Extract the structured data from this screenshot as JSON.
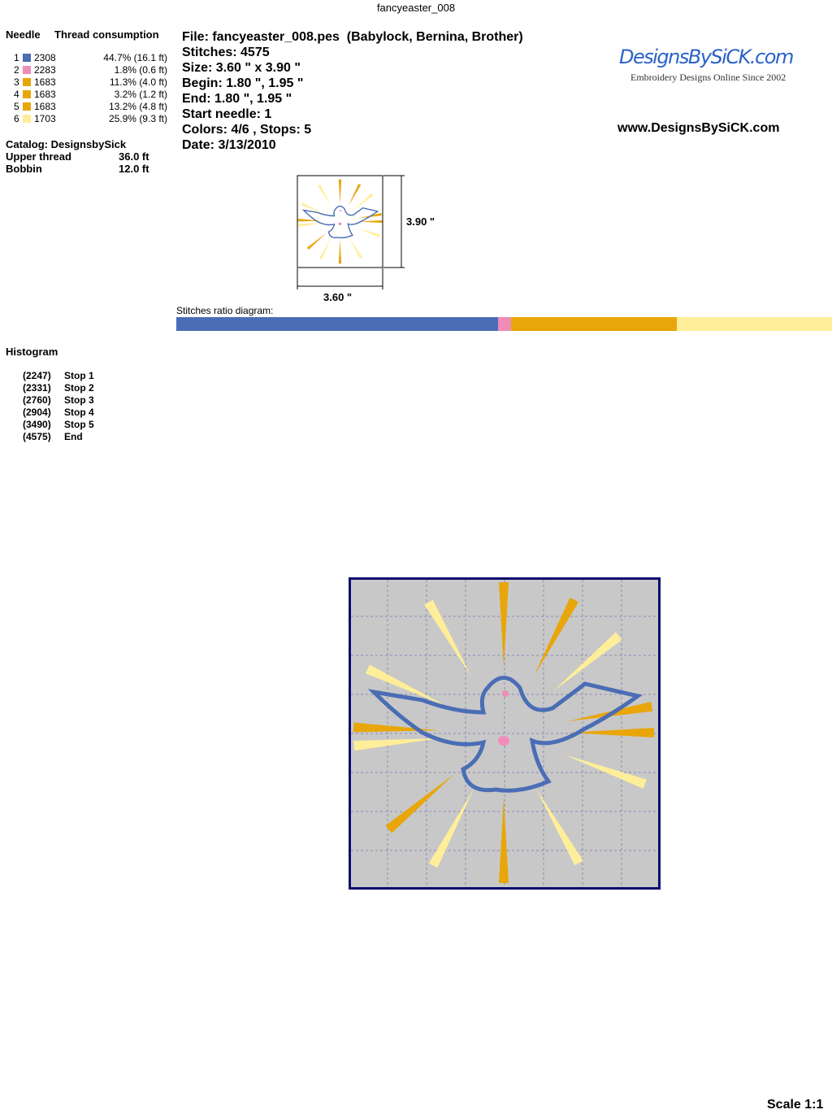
{
  "title": "fancyeaster_008",
  "thread_table": {
    "header_needle": "Needle",
    "header_consumption": "Thread consumption",
    "rows": [
      {
        "needle": "1",
        "color": "#4a6db5",
        "code": "2308",
        "consumption": "44.7% (16.1 ft)"
      },
      {
        "needle": "2",
        "color": "#f08cb8",
        "code": "2283",
        "consumption": "1.8% (0.6 ft)"
      },
      {
        "needle": "3",
        "color": "#e8a60a",
        "code": "1683",
        "consumption": "11.3% (4.0 ft)"
      },
      {
        "needle": "4",
        "color": "#e8a60a",
        "code": "1683",
        "consumption": "3.2% (1.2 ft)"
      },
      {
        "needle": "5",
        "color": "#e8a60a",
        "code": "1683",
        "consumption": "13.2% (4.8 ft)"
      },
      {
        "needle": "6",
        "color": "#ffee99",
        "code": "1703",
        "consumption": "25.9% (9.3 ft)"
      }
    ],
    "catalog": "Catalog: DesignsbySick",
    "upper_label": "Upper thread",
    "upper_value": "36.0 ft",
    "bobbin_label": "Bobbin",
    "bobbin_value": "12.0 ft"
  },
  "info": {
    "file": "File: fancyeaster_008.pes  (Babylock, Bernina, Brother)",
    "stitches": "Stitches: 4575",
    "size": "Size: 3.60 \" x 3.90 \"",
    "begin": "Begin: 1.80 \", 1.95 \"",
    "end": "End: 1.80 \", 1.95 \"",
    "start_needle": "Start needle: 1",
    "colors": "Colors: 4/6 , Stops: 5",
    "date": "Date: 3/13/2010"
  },
  "logo": {
    "brand": "DesignsBySiCK.com",
    "tagline": "Embroidery Designs Online Since 2002",
    "url": "www.DesignsBySiCK.com"
  },
  "thumbnail": {
    "height_label": "3.90 \"",
    "width_label": "3.60 \""
  },
  "ratio": {
    "label": "Stitches ratio diagram:",
    "segments": [
      {
        "color": "#4a6db5",
        "percent": 49.1
      },
      {
        "color": "#f08cb8",
        "percent": 1.9
      },
      {
        "color": "#e8a60a",
        "percent": 25.3
      },
      {
        "color": "#ffee99",
        "percent": 23.7
      }
    ]
  },
  "histogram": {
    "title": "Histogram",
    "items": [
      {
        "count": "(2247)",
        "label": "Stop 1"
      },
      {
        "count": "(2331)",
        "label": "Stop 2"
      },
      {
        "count": "(2760)",
        "label": "Stop 3"
      },
      {
        "count": "(2904)",
        "label": "Stop 4"
      },
      {
        "count": "(3490)",
        "label": "Stop 5"
      },
      {
        "count": "(4575)",
        "label": "End"
      }
    ]
  },
  "preview": {
    "background": "#c8c8c8",
    "border": "#0a0a6e"
  },
  "scale": "Scale 1:1"
}
